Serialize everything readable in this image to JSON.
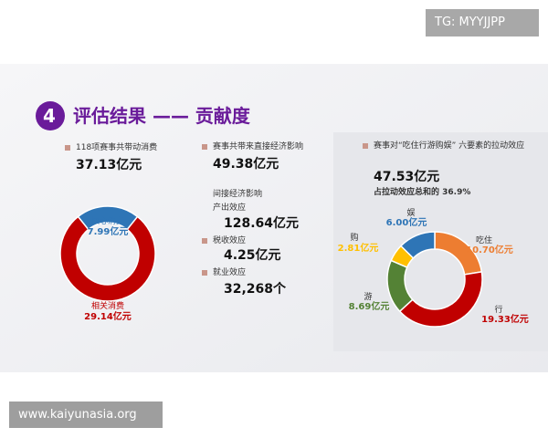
{
  "watermark_top": "TG: MYYJJPP",
  "watermark_bottom": "www.kaiyunasia.org",
  "header": {
    "number": "4",
    "title": "评估结果 —— 贡献度"
  },
  "panels": [
    {
      "label": "118项赛事共带动消费",
      "value": "37.13亿元"
    },
    {
      "label": "赛事共带来直接经济影响",
      "value": "49.38亿元",
      "sub_title": "间接经济影响",
      "items": [
        {
          "label": "产出效应",
          "value": "128.64亿元"
        },
        {
          "label": "税收效应",
          "value": "4.25亿元"
        },
        {
          "label": "就业效应",
          "value": "32,268个"
        }
      ]
    },
    {
      "label": "赛事对“吃住行游购娱” 六要素的拉动效应",
      "value": "47.53亿元",
      "note": "占拉动效应总和的 36.9%"
    }
  ],
  "chart_data": [
    {
      "type": "pie",
      "donut": true,
      "categories": [
        "核心消费",
        "相关消费"
      ],
      "values": [
        7.99,
        29.14
      ],
      "value_labels": [
        "7.99亿元",
        "29.14亿元"
      ],
      "colors": [
        "#2e75b6",
        "#c00000"
      ]
    },
    {
      "type": "pie",
      "donut": true,
      "categories": [
        "吃住",
        "行",
        "游",
        "购",
        "娱"
      ],
      "values": [
        10.7,
        19.33,
        8.69,
        2.81,
        6.0
      ],
      "value_labels": [
        "10.70亿元",
        "19.33亿元",
        "8.69亿元",
        "2.81亿元",
        "6.00亿元"
      ],
      "colors": [
        "#ed7d31",
        "#c00000",
        "#548235",
        "#ffc000",
        "#2e75b6"
      ]
    }
  ]
}
